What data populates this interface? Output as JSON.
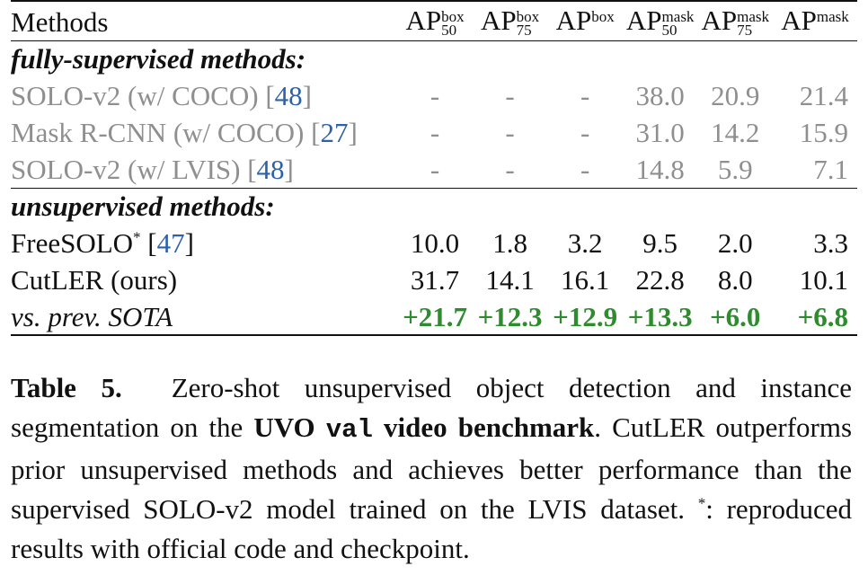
{
  "table": {
    "header": {
      "methods": "Methods",
      "cols": [
        {
          "base": "AP",
          "sup": "box",
          "sub": "50"
        },
        {
          "base": "AP",
          "sup": "box",
          "sub": "75"
        },
        {
          "base": "AP",
          "sup": "box",
          "sub": ""
        },
        {
          "base": "AP",
          "sup": "mask",
          "sub": "50"
        },
        {
          "base": "AP",
          "sup": "mask",
          "sub": "75"
        },
        {
          "base": "AP",
          "sup": "mask",
          "sub": ""
        }
      ]
    },
    "sections": [
      {
        "title": "fully-supervised methods:",
        "rows": [
          {
            "name": "SOLO-v2 (w/ COCO)",
            "cite": "48",
            "values": [
              "-",
              "-",
              "-",
              "38.0",
              "20.9",
              "21.4"
            ]
          },
          {
            "name": "Mask R-CNN (w/ COCO)",
            "cite": "27",
            "values": [
              "-",
              "-",
              "-",
              "31.0",
              "14.2",
              "15.9"
            ]
          },
          {
            "name": "SOLO-v2 (w/ LVIS)",
            "cite": "48",
            "values": [
              "-",
              "-",
              "-",
              "14.8",
              "5.9",
              "7.1"
            ]
          }
        ]
      },
      {
        "title": "unsupervised methods:",
        "rows": [
          {
            "name": "FreeSOLO",
            "star": "*",
            "cite": "47",
            "values": [
              "10.0",
              "1.8",
              "3.2",
              "9.5",
              "2.0",
              "3.3"
            ]
          },
          {
            "name": "CutLER (ours)",
            "values": [
              "31.7",
              "14.1",
              "16.1",
              "22.8",
              "8.0",
              "10.1"
            ]
          },
          {
            "name": "vs. prev. SOTA",
            "values": [
              "+21.7",
              "+12.3",
              "+12.9",
              "+13.3",
              "+6.0",
              "+6.8"
            ]
          }
        ]
      }
    ]
  },
  "caption": {
    "label": "Table 5.",
    "text1": "Zero-shot unsupervised object detection and instance segmentation on the",
    "bold1": "UVO",
    "mono": "val",
    "bold2": "video benchmark",
    "text2": ". CutLER outperforms prior unsupervised methods and achieves better performance than the supervised SOLO-v2 model trained on the LVIS dataset.",
    "star": "*",
    "text3": ": reproduced results with official code and checkpoint."
  },
  "colors": {
    "supervised_text": "#8f8f8f",
    "citation": "#2e62a8",
    "improvement": "#2e8b2e"
  }
}
